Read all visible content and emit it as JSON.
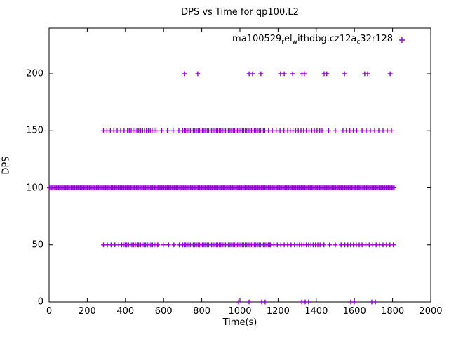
{
  "background_color": "#ffffff",
  "chart_data": {
    "type": "scatter",
    "title": "DPS vs Time for qp100.L2",
    "xlabel": "Time(s)",
    "ylabel": "DPS",
    "xlim": [
      0,
      2000
    ],
    "ylim": [
      0,
      240
    ],
    "x_ticks": [
      0,
      200,
      400,
      600,
      800,
      1000,
      1200,
      1400,
      1600,
      1800,
      2000
    ],
    "y_ticks": [
      0,
      50,
      100,
      150,
      200
    ],
    "grid": false,
    "marker": "plus",
    "marker_color": "#9400d3",
    "legend": {
      "position": "top-right-inside",
      "label_plain": "ma100529_rel_withdbg.cz12a_c32r128",
      "label_segments": [
        {
          "text": "ma100529"
        },
        {
          "text": "r",
          "sub": true
        },
        {
          "text": "el"
        },
        {
          "text": "w",
          "sub": true
        },
        {
          "text": "ithdbg.cz12a"
        },
        {
          "text": "c",
          "sub": true
        },
        {
          "text": "32r128"
        }
      ]
    },
    "series": [
      {
        "name": "ma100529_rel_withdbg.cz12a_c32r128",
        "color": "#9400d3",
        "marker": "plus",
        "bands": [
          {
            "y": 100,
            "segments": [
              [
                2,
                1812,
                6
              ]
            ]
          },
          {
            "y": 150,
            "segments": [
              [
                285,
                420,
                18
              ],
              [
                420,
                560,
                10
              ],
              [
                560,
                700,
                30
              ],
              [
                700,
                1130,
                8
              ],
              [
                1130,
                1250,
                20
              ],
              [
                1250,
                1420,
                14
              ],
              [
                1430,
                1530,
                35
              ],
              [
                1540,
                1620,
                18
              ],
              [
                1640,
                1810,
                22
              ]
            ]
          },
          {
            "y": 50,
            "segments": [
              [
                285,
                380,
                20
              ],
              [
                380,
                570,
                9
              ],
              [
                570,
                700,
                28
              ],
              [
                700,
                1160,
                8
              ],
              [
                1160,
                1300,
                18
              ],
              [
                1300,
                1430,
                12
              ],
              [
                1440,
                1540,
                30
              ],
              [
                1550,
                1650,
                15
              ],
              [
                1660,
                1810,
                18
              ]
            ]
          }
        ],
        "isolated_points": [
          {
            "y": 200,
            "x": [
              709,
              779,
              1048,
              1066,
              1110,
              1213,
              1232,
              1276,
              1325,
              1338,
              1441,
              1455,
              1548,
              1654,
              1669,
              1787
            ]
          },
          {
            "y": 0,
            "x": [
              993,
              1048,
              1114,
              1132,
              1324,
              1342,
              1360,
              1581,
              1599,
              1691,
              1710
            ]
          }
        ]
      }
    ]
  }
}
